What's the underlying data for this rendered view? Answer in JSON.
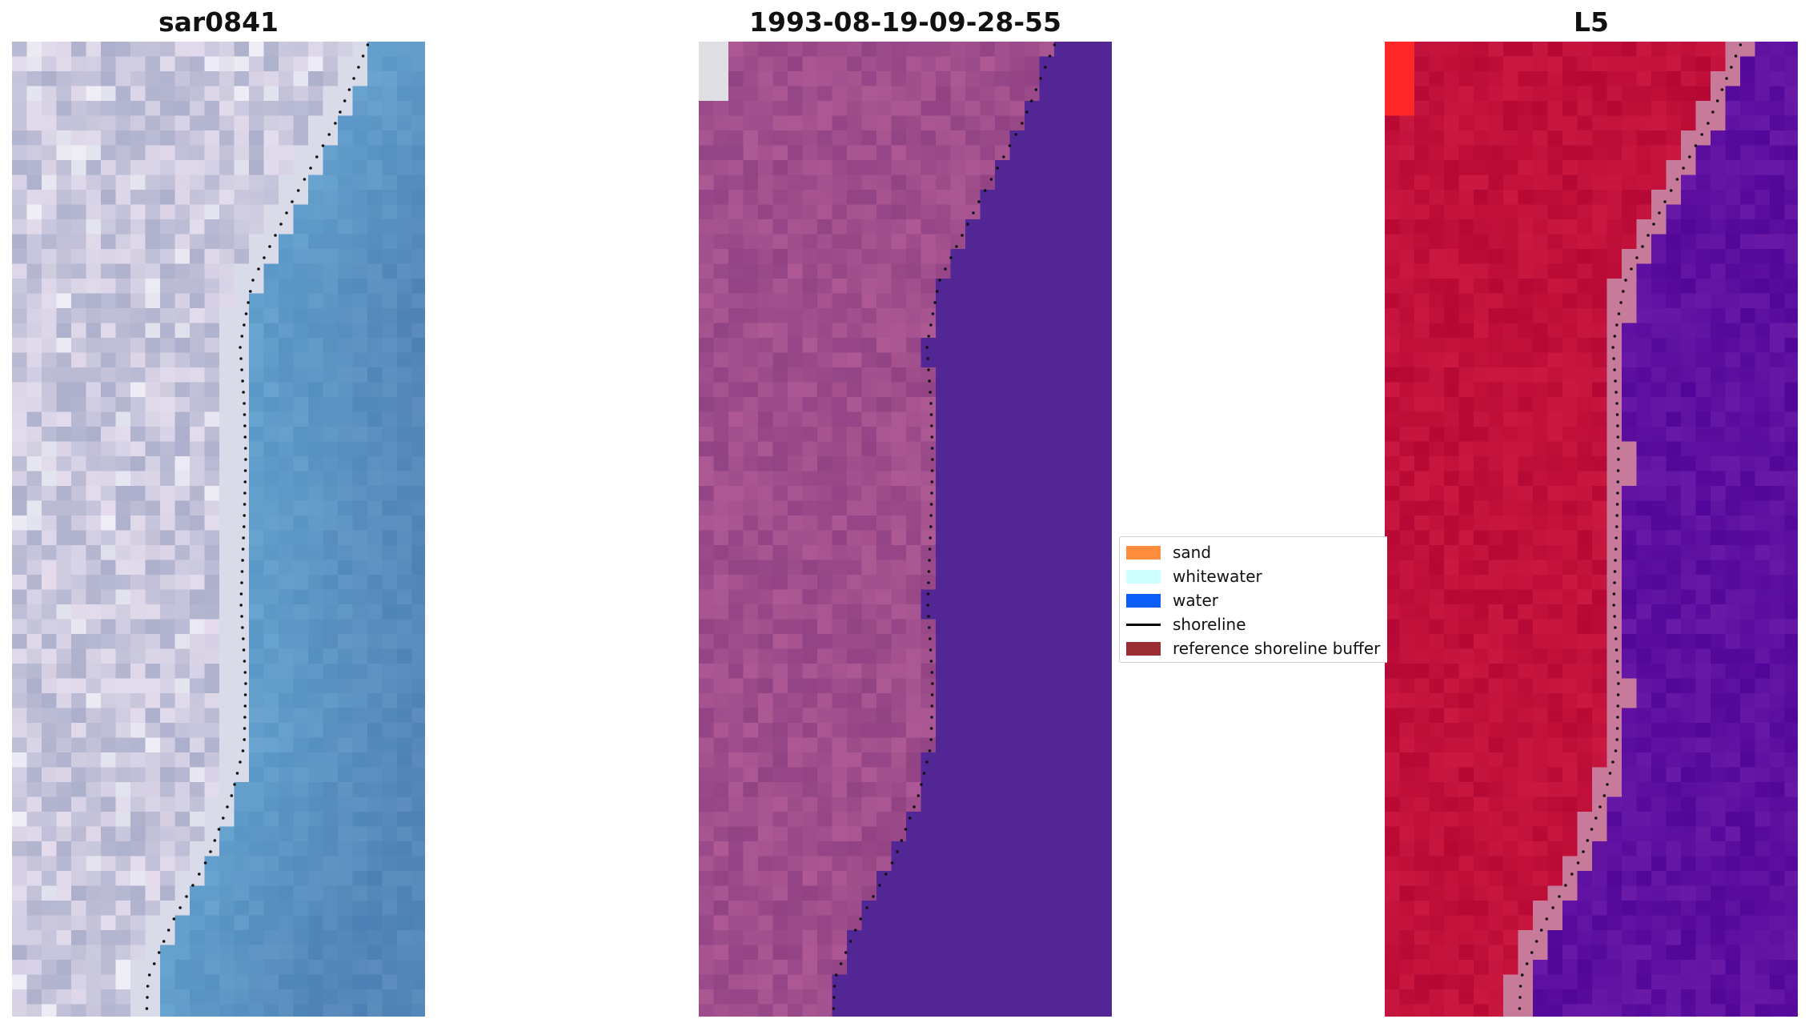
{
  "panels": [
    {
      "title": "sar0841"
    },
    {
      "title": "1993-08-19-09-28-55"
    },
    {
      "title": "L5"
    }
  ],
  "legend": {
    "items": [
      {
        "label": "sand",
        "color": "#fd8c3c"
      },
      {
        "label": "whitewater",
        "color": "#ccffff"
      },
      {
        "label": "water",
        "color": "#0a5ef7"
      },
      {
        "label": "shoreline",
        "color": "#000000"
      },
      {
        "label": "reference shoreline buffer",
        "color": "#9b2d35"
      }
    ]
  },
  "colors": {
    "rgb_land": "#c8c6dc",
    "rgb_water": "#5487b9",
    "classified_land": "#a04e8c",
    "classified_water": "#522694",
    "mndwi_land": "#c0103a",
    "mndwi_water": "#5e10a0",
    "buffer_edge": "#c87a9a"
  }
}
